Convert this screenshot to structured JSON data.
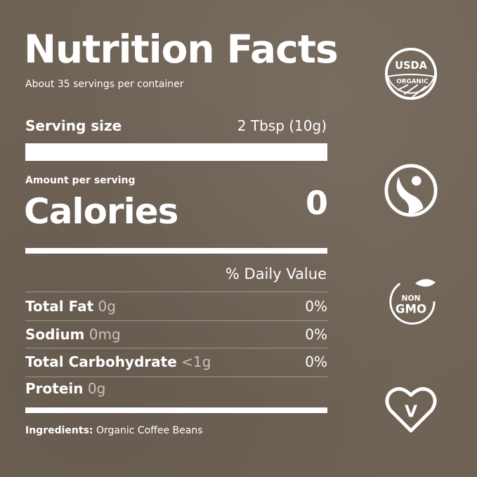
{
  "label": {
    "title": "Nutrition Facts",
    "servings_per_container": "About 35 servings per container",
    "serving_size_label": "Serving size",
    "serving_size_value": "2 Tbsp (10g)",
    "amount_per_serving": "Amount per serving",
    "calories_label": "Calories",
    "calories_value": "0",
    "daily_value_header": "% Daily Value",
    "nutrients": [
      {
        "name": "Total Fat",
        "amount": "0g",
        "dv": "0%"
      },
      {
        "name": "Sodium",
        "amount": "0mg",
        "dv": "0%"
      },
      {
        "name": "Total Carbohydrate",
        "amount": "<1g",
        "dv": "0%"
      },
      {
        "name": "Protein",
        "amount": "0g",
        "dv": ""
      }
    ],
    "ingredients_label": "Ingredients:",
    "ingredients_value": "Organic Coffee Beans"
  },
  "badges": {
    "usda_top": "USDA",
    "usda_bottom": "ORGANIC",
    "nongmo_top": "NON",
    "nongmo_bottom": "GMO",
    "vegan_letter": "V"
  },
  "colors": {
    "background": "#6f6356",
    "text": "#ffffff",
    "amount_text": "#cbc2b7"
  }
}
